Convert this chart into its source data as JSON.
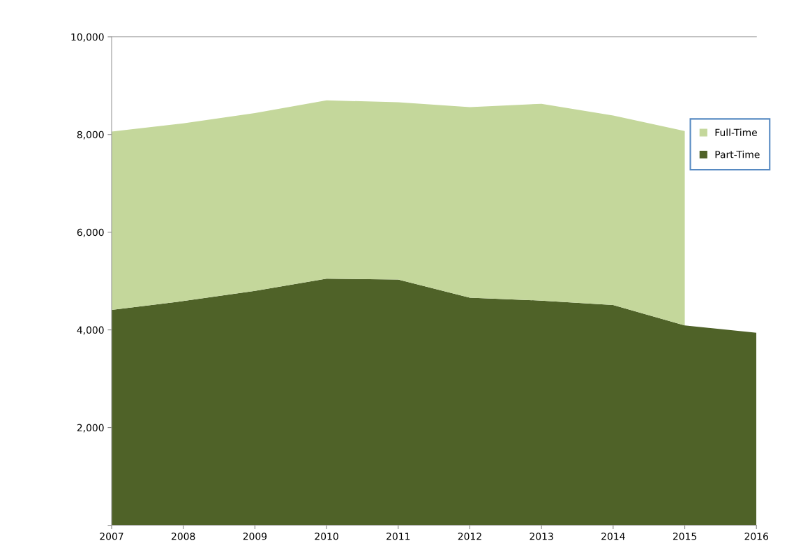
{
  "chart_data": {
    "type": "area",
    "stacked": true,
    "categories": [
      "2007",
      "2008",
      "2009",
      "2010",
      "2011",
      "2012",
      "2013",
      "2014",
      "2015",
      "2016"
    ],
    "series": [
      {
        "name": "Part-Time",
        "color": "#4f6228",
        "values": [
          4410,
          4590,
          4800,
          5050,
          5030,
          4660,
          4600,
          4510,
          4090,
          3940
        ]
      },
      {
        "name": "Full-Time",
        "color": "#c4d79b",
        "values": [
          3650,
          3640,
          3640,
          3650,
          3630,
          3900,
          4030,
          3880,
          3980,
          null
        ]
      }
    ],
    "ylim": [
      0,
      10000
    ],
    "yticks": [
      {
        "value": 0,
        "label": null
      },
      {
        "value": 2000,
        "label": "2,000"
      },
      {
        "value": 4000,
        "label": "4,000"
      },
      {
        "value": 6000,
        "label": "6,000"
      },
      {
        "value": 8000,
        "label": "8,000"
      },
      {
        "value": 10000,
        "label": "10,000"
      }
    ],
    "grid": false,
    "legend": "right"
  }
}
